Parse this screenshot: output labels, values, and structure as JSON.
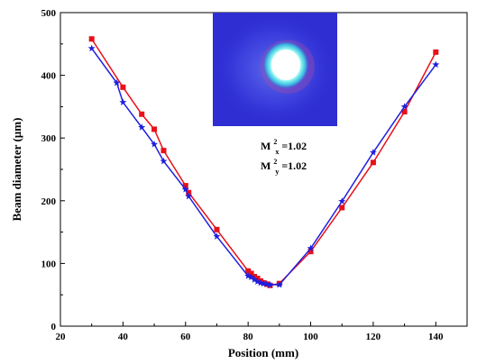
{
  "chart_data": {
    "type": "line",
    "title": "",
    "xlabel": "Position (mm)",
    "ylabel": "Beam diameter (µm)",
    "xlim": [
      20,
      150
    ],
    "ylim": [
      0,
      500
    ],
    "x_ticks": [
      20,
      40,
      60,
      80,
      100,
      120,
      140
    ],
    "y_ticks": [
      0,
      100,
      200,
      300,
      400,
      500
    ],
    "grid": false,
    "legend": "none",
    "series": [
      {
        "color": "#e8101a",
        "marker": "square",
        "points": [
          [
            30,
            458
          ],
          [
            40,
            381
          ],
          [
            46,
            338
          ],
          [
            50,
            314
          ],
          [
            53,
            280
          ],
          [
            60,
            224
          ],
          [
            61,
            213
          ],
          [
            70,
            154
          ],
          [
            80,
            88
          ],
          [
            81,
            84
          ],
          [
            82,
            79
          ],
          [
            83,
            76
          ],
          [
            84,
            72
          ],
          [
            85,
            69
          ],
          [
            86,
            67
          ],
          [
            87,
            65
          ],
          [
            90,
            68
          ],
          [
            100,
            119
          ],
          [
            110,
            189
          ],
          [
            120,
            261
          ],
          [
            130,
            342
          ],
          [
            140,
            437
          ]
        ]
      },
      {
        "color": "#1f1fe0",
        "marker": "star",
        "points": [
          [
            30,
            443
          ],
          [
            38,
            388
          ],
          [
            40,
            357
          ],
          [
            46,
            317
          ],
          [
            50,
            290
          ],
          [
            53,
            263
          ],
          [
            60,
            218
          ],
          [
            61,
            207
          ],
          [
            70,
            143
          ],
          [
            80,
            80
          ],
          [
            81,
            78
          ],
          [
            82,
            74
          ],
          [
            83,
            71
          ],
          [
            84,
            69
          ],
          [
            85,
            68
          ],
          [
            86,
            67
          ],
          [
            87,
            66
          ],
          [
            90,
            66
          ],
          [
            100,
            124
          ],
          [
            110,
            199
          ],
          [
            120,
            277
          ],
          [
            130,
            350
          ],
          [
            140,
            417
          ]
        ]
      }
    ],
    "annotations": {
      "mx_base": "M",
      "mx_sup": "2",
      "mx_sub": "x",
      "mx_value": "=1.02",
      "my_base": "M",
      "my_sup": "2",
      "my_sub": "y",
      "my_value": "=1.02"
    }
  }
}
